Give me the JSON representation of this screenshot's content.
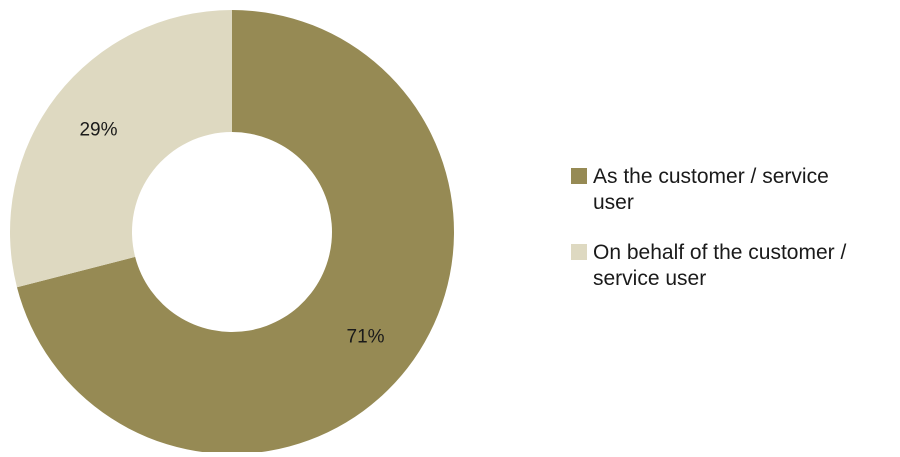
{
  "chart_data": {
    "type": "pie",
    "variant": "donut",
    "categories": [
      "As the customer / service user",
      "On behalf of the customer / service user"
    ],
    "values": [
      71,
      29
    ],
    "data_labels": [
      "71%",
      "29%"
    ],
    "colors": [
      "#968a54",
      "#ded9c1"
    ],
    "legend": {
      "placement": "right",
      "entries": [
        {
          "lines": [
            "As the customer / service",
            "user"
          ],
          "color": "#968a54"
        },
        {
          "lines": [
            "On behalf of the customer /",
            "service user"
          ],
          "color": "#ded9c1"
        }
      ]
    },
    "title": "",
    "start_angle_deg": 0,
    "direction": "clockwise"
  }
}
